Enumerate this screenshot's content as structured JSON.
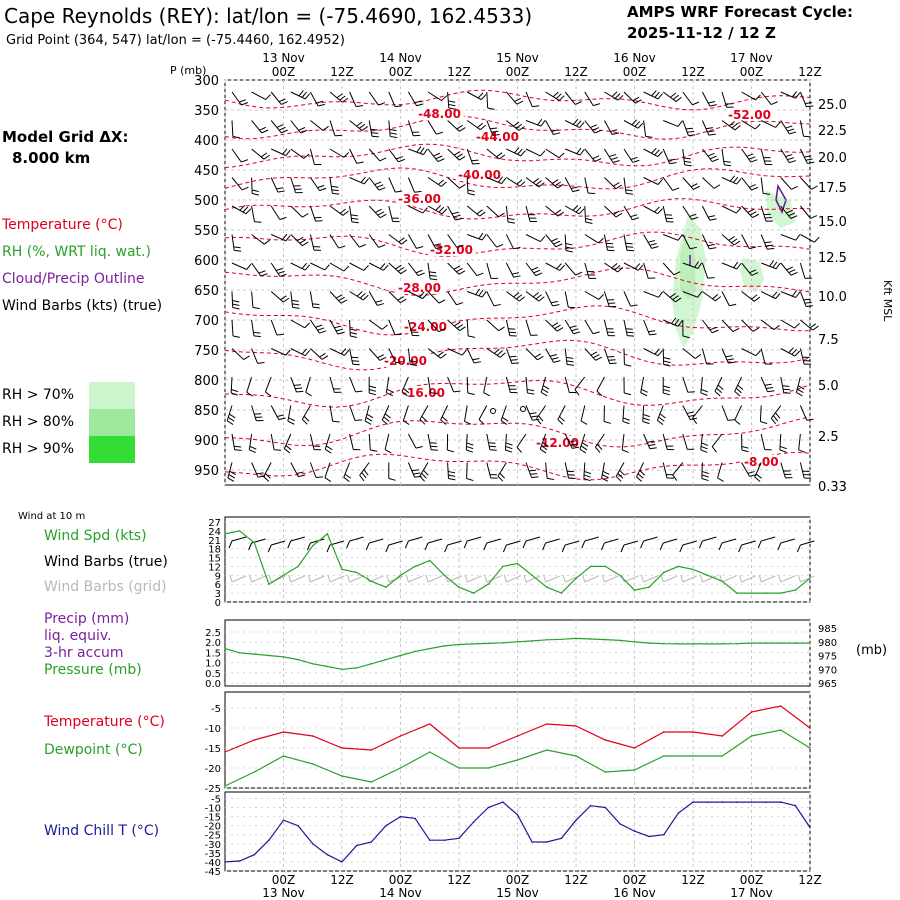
{
  "header": {
    "station": "Cape Reynolds (REY):  lat/lon = (-75.4690, 162.4533)",
    "gridpoint": "Grid Point (364, 547) lat/lon = (-75.4460, 162.4952)",
    "cycle_line1": "AMPS WRF Forecast Cycle:",
    "cycle_line2": "2025-11-12 / 12  Z"
  },
  "left_panel": {
    "grid_label": "Model Grid ΔX:",
    "grid_value": "8.000 km",
    "legend": [
      {
        "text": "Temperature (°C)",
        "color": "#e0001b"
      },
      {
        "text": "RH (%, WRT liq. wat.)",
        "color": "#2aa12a"
      },
      {
        "text": "Cloud/Precip Outline",
        "color": "#7d1fa0"
      },
      {
        "text": "Wind Barbs (kts) (true)",
        "color": "#000000"
      }
    ],
    "rh_legend": [
      {
        "text": "RH > 70%",
        "color": "#ccf5cc"
      },
      {
        "text": "RH > 80%",
        "color": "#9ee89e"
      },
      {
        "text": "RH > 90%",
        "color": "#33dd33"
      }
    ]
  },
  "time_axis": {
    "top_dates": [
      "13 Nov",
      "14 Nov",
      "15 Nov",
      "16 Nov",
      "17 Nov"
    ],
    "hour_labels": [
      "00Z",
      "12Z",
      "00Z",
      "12Z",
      "00Z",
      "12Z",
      "00Z",
      "12Z",
      "00Z",
      "12Z"
    ],
    "bottom_dates": [
      "13 Nov",
      "14 Nov",
      "15 Nov",
      "16 Nov",
      "17 Nov"
    ]
  },
  "upper_panel": {
    "p_label": "P (mb)",
    "right_label": "Kft MSL",
    "pressure_ticks": [
      "300",
      "350",
      "400",
      "450",
      "500",
      "550",
      "600",
      "650",
      "700",
      "750",
      "800",
      "850",
      "900",
      "950"
    ],
    "height_ticks": [
      "25.0",
      "22.5",
      "20.0",
      "17.5",
      "15.0",
      "12.5",
      "10.0",
      "7.5",
      "5.0",
      "2.5",
      "0.33"
    ],
    "temp_contour_labels": [
      "-48.00",
      "-52.00",
      "-44.00",
      "-40.00",
      "-36.00",
      "-32.00",
      "-28.00",
      "-24.00",
      "-20.00",
      "-16.00",
      "-12.00",
      "-8.00"
    ]
  },
  "wind_panel": {
    "title": "Wind at 10 m",
    "legend": [
      {
        "text": "Wind Spd (kts)",
        "color": "#2aa12a"
      },
      {
        "text": "Wind Barbs (true)",
        "color": "#000000"
      },
      {
        "text": "Wind Barbs (grid)",
        "color": "#b8b8b8"
      }
    ],
    "yticks": [
      "27",
      "24",
      "21",
      "18",
      "15",
      "12",
      "9",
      "6",
      "3",
      "0"
    ]
  },
  "precip_panel": {
    "legend": [
      {
        "text": "Precip (mm)",
        "color": "#7d1fa0"
      },
      {
        "text": "liq. equiv.",
        "color": "#7d1fa0"
      },
      {
        "text": "3-hr accum",
        "color": "#7d1fa0"
      },
      {
        "text": "Pressure (mb)",
        "color": "#2aa12a"
      }
    ],
    "left_ticks": [
      "2.5",
      "2.0",
      "1.5",
      "1.0",
      "0.5",
      "0.0"
    ],
    "right_ticks": [
      "985",
      "980",
      "975",
      "970",
      "965"
    ],
    "right_unit": "(mb)"
  },
  "temp_panel": {
    "legend": [
      {
        "text": "Temperature (°C)",
        "color": "#e0001b"
      },
      {
        "text": "Dewpoint (°C)",
        "color": "#2aa12a"
      }
    ],
    "yticks": [
      "-5",
      "-10",
      "-15",
      "-20",
      "-25"
    ]
  },
  "chill_panel": {
    "legend": [
      {
        "text": "Wind Chill T (°C)",
        "color": "#1a1a9c"
      }
    ],
    "yticks": [
      "-5",
      "-10",
      "-15",
      "-20",
      "-25",
      "-30",
      "-35",
      "-40",
      "-45"
    ]
  },
  "chart_data": [
    {
      "type": "line",
      "title": "Wind at 10 m",
      "x_unit": "forecast hour",
      "x": [
        0,
        3,
        6,
        9,
        12,
        15,
        18,
        21,
        24,
        27,
        30,
        33,
        36,
        39,
        42,
        45,
        48,
        51,
        54,
        57,
        60,
        63,
        66,
        69,
        72,
        75,
        78,
        81,
        84,
        87,
        90,
        93,
        96,
        99,
        102,
        105,
        108,
        111,
        114,
        117,
        120
      ],
      "ylim": [
        0,
        27
      ],
      "series": [
        {
          "name": "Wind Spd (kts)",
          "color": "#2aa12a",
          "values": [
            23,
            24,
            20,
            6,
            9,
            12,
            19,
            23,
            11,
            10,
            7,
            5,
            9,
            12,
            14,
            9,
            5,
            3,
            6,
            12,
            13,
            9,
            5,
            3,
            8,
            12,
            12,
            9,
            4,
            5,
            10,
            12,
            11,
            9,
            7,
            3,
            3,
            3,
            3,
            4,
            8
          ]
        }
      ]
    },
    {
      "type": "line",
      "title": "",
      "x_unit": "forecast hour",
      "x": [
        0,
        3,
        6,
        9,
        12,
        15,
        18,
        21,
        24,
        27,
        30,
        33,
        36,
        39,
        42,
        45,
        48,
        51,
        54,
        57,
        60,
        63,
        66,
        69,
        72,
        75,
        78,
        81,
        84,
        87,
        90,
        93,
        96,
        99,
        102,
        105,
        108,
        111,
        114,
        117,
        120
      ],
      "ylim_left": [
        0,
        2.5
      ],
      "ylim_right": [
        965,
        985
      ],
      "series": [
        {
          "name": "Pressure (mb)",
          "color": "#2aa12a",
          "axis": "right",
          "values": [
            977.5,
            976.0,
            975.5,
            975.0,
            974.5,
            973.5,
            972.0,
            971.0,
            970.0,
            970.5,
            972.0,
            973.5,
            975.0,
            976.5,
            977.5,
            978.5,
            979.0,
            979.2,
            979.4,
            979.6,
            980.0,
            980.3,
            980.7,
            980.9,
            981.2,
            981.0,
            980.8,
            980.5,
            980.0,
            979.5,
            979.3,
            979.2,
            979.2,
            979.2,
            979.2,
            979.3,
            979.5,
            979.5,
            979.5,
            979.5,
            979.5
          ]
        }
      ]
    },
    {
      "type": "line",
      "title": "",
      "x_unit": "forecast hour",
      "x": [
        0,
        6,
        12,
        18,
        24,
        30,
        36,
        42,
        48,
        54,
        60,
        66,
        72,
        78,
        84,
        90,
        96,
        102,
        108,
        114,
        120
      ],
      "ylim": [
        -25,
        -2
      ],
      "series": [
        {
          "name": "Temperature (°C)",
          "color": "#e0001b",
          "values": [
            -16,
            -13,
            -11,
            -12,
            -15,
            -15.5,
            -12,
            -9,
            -15,
            -15,
            -12,
            -9,
            -9.5,
            -13,
            -15,
            -11,
            -11,
            -12,
            -6,
            -4.5,
            -10
          ]
        },
        {
          "name": "Dewpoint (°C)",
          "color": "#2aa12a",
          "values": [
            -24.5,
            -21,
            -17,
            -19,
            -22,
            -23.5,
            -20,
            -16,
            -20,
            -20,
            -18,
            -15.5,
            -17,
            -21,
            -20.5,
            -17,
            -17,
            -17,
            -12,
            -10.5,
            -15
          ]
        }
      ]
    },
    {
      "type": "line",
      "title": "",
      "x_unit": "forecast hour",
      "x": [
        0,
        3,
        6,
        9,
        12,
        15,
        18,
        21,
        24,
        27,
        30,
        33,
        36,
        39,
        42,
        45,
        48,
        51,
        54,
        57,
        60,
        63,
        66,
        69,
        72,
        75,
        78,
        81,
        84,
        87,
        90,
        93,
        96,
        99,
        102,
        105,
        108,
        111,
        114,
        117,
        120
      ],
      "ylim": [
        -45,
        -2
      ],
      "series": [
        {
          "name": "Wind Chill T (°C)",
          "color": "#1a1a9c",
          "values": [
            -40,
            -39.5,
            -36,
            -28,
            -17,
            -20,
            -30,
            -36,
            -40,
            -31,
            -29,
            -20,
            -15,
            -16,
            -28,
            -28,
            -27,
            -18,
            -10,
            -7,
            -14,
            -29,
            -29,
            -27,
            -17,
            -9,
            -10,
            -19,
            -23,
            -26,
            -25,
            -13,
            -7,
            -7,
            -7,
            -7,
            -7,
            -7,
            -7,
            -9,
            -21
          ]
        }
      ]
    }
  ]
}
